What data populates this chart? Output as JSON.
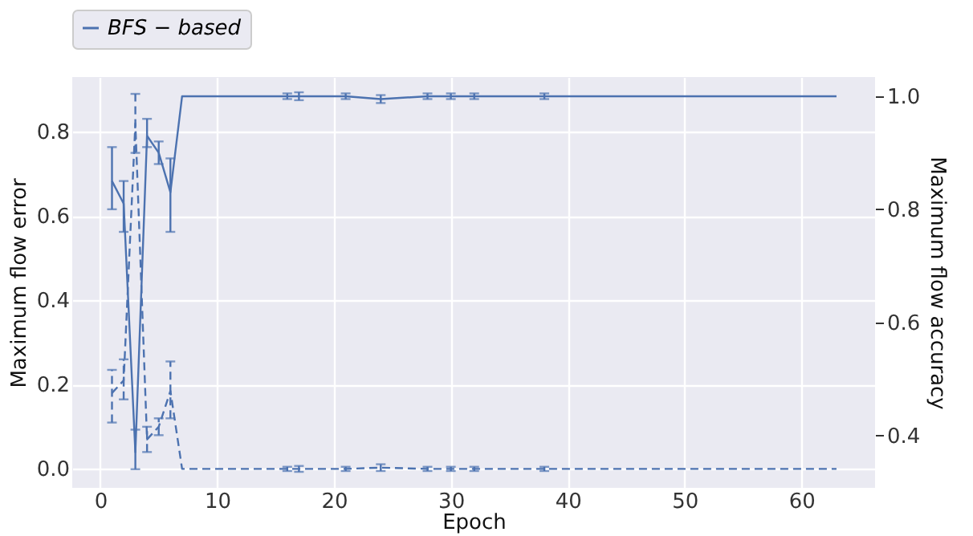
{
  "chart_data": {
    "type": "line",
    "xlabel": "Epoch",
    "ylabel": "Maximum flow error",
    "y2label": "Maximum flow accuracy",
    "xlim": [
      -2.4,
      66.3
    ],
    "xticks": [
      0,
      10,
      20,
      30,
      40,
      50,
      60
    ],
    "ylim": [
      -0.045,
      0.93
    ],
    "yticks": [
      {
        "value": 0,
        "label": "0.0"
      },
      0.2,
      0.4,
      0.6,
      0.8
    ],
    "y2lim": [
      0.307,
      1.034
    ],
    "y2ticks": [
      0.4,
      0.6,
      0.8,
      {
        "value": 1,
        "label": "1.0"
      }
    ],
    "grid": true,
    "legend": "top",
    "marker": "none",
    "series": [
      {
        "name": "BFS − based",
        "color": "#4c72b0",
        "axis": "y2",
        "line_style": "solid",
        "x": [
          1,
          2,
          3,
          4,
          5,
          6,
          7,
          16,
          17,
          21,
          24,
          28,
          30,
          32,
          38,
          63
        ],
        "values": [
          0.85,
          0.81,
          0.37,
          0.93,
          0.9,
          0.83,
          1.0,
          1.0,
          1.0,
          1.0,
          0.995,
          1.0,
          1.0,
          1.0,
          1.0,
          1.0
        ],
        "errors": [
          [
            0.8,
            0.91
          ],
          [
            0.76,
            0.85
          ],
          [
            0.34,
            0.41
          ],
          [
            0.91,
            0.96
          ],
          [
            0.88,
            0.92
          ],
          [
            0.76,
            0.89
          ],
          null,
          [
            0.995,
            1.005
          ],
          [
            0.993,
            1.007
          ],
          [
            0.995,
            1.005
          ],
          [
            0.988,
            1.002
          ],
          [
            0.995,
            1.005
          ],
          [
            0.995,
            1.005
          ],
          [
            0.995,
            1.005
          ],
          [
            0.995,
            1.005
          ],
          null
        ]
      },
      {
        "color": "#4c72b0",
        "axis": "y",
        "line_style": "dashed",
        "x": [
          1,
          2,
          3,
          4,
          5,
          6,
          7,
          16,
          17,
          21,
          24,
          28,
          30,
          32,
          38,
          63
        ],
        "values": [
          0.18,
          0.21,
          0.82,
          0.07,
          0.1,
          0.185,
          0.0,
          0.0,
          0.0,
          0.0,
          0.003,
          0.0,
          0.0,
          0.0,
          0.0,
          0.0
        ],
        "errors": [
          [
            0.11,
            0.235
          ],
          [
            0.165,
            0.26
          ],
          [
            0.75,
            0.89
          ],
          [
            0.04,
            0.1
          ],
          [
            0.08,
            0.12
          ],
          [
            0.12,
            0.255
          ],
          null,
          [
            -0.005,
            0.005
          ],
          [
            -0.007,
            0.007
          ],
          [
            -0.005,
            0.005
          ],
          [
            -0.005,
            0.011
          ],
          [
            -0.005,
            0.005
          ],
          [
            -0.005,
            0.005
          ],
          [
            -0.005,
            0.005
          ],
          [
            -0.005,
            0.005
          ],
          null
        ]
      }
    ]
  }
}
